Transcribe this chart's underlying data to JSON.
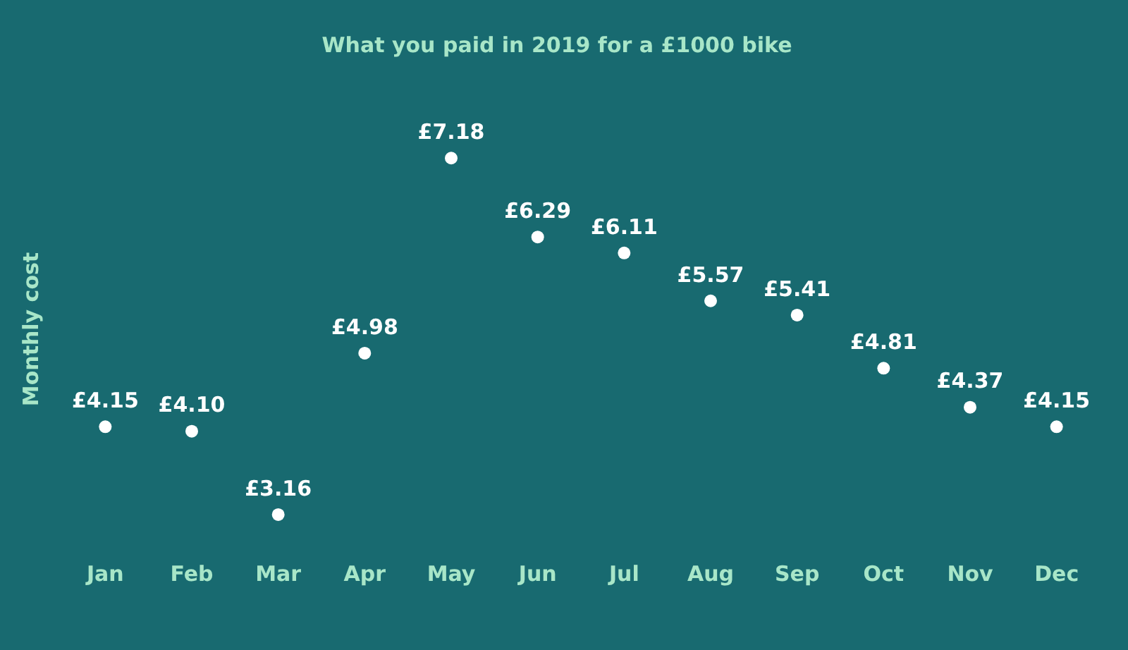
{
  "chart_data": {
    "type": "scatter",
    "title": "What you paid in 2019 for a £1000 bike",
    "ylabel": "Monthly cost",
    "categories": [
      "Jan",
      "Feb",
      "Mar",
      "Apr",
      "May",
      "Jun",
      "Jul",
      "Aug",
      "Sep",
      "Oct",
      "Nov",
      "Dec"
    ],
    "series": [
      {
        "color": "#ffffff",
        "values": [
          4.15,
          4.1,
          3.16,
          4.98,
          7.18,
          6.29,
          6.11,
          5.57,
          5.41,
          4.81,
          4.37,
          4.15
        ],
        "value_labels": [
          "£4.15",
          "£4.10",
          "£3.16",
          "£4.98",
          "£7.18",
          "£6.29",
          "£6.11",
          "£5.57",
          "£5.41",
          "£4.81",
          "£4.37",
          "£4.15"
        ]
      }
    ],
    "marker": "circle"
  }
}
